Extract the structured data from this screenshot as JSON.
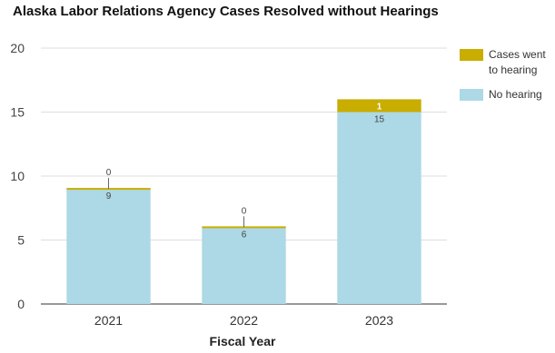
{
  "chart_data": {
    "type": "bar",
    "stacked": true,
    "title": "Alaska Labor Relations Agency Cases Resolved without Hearings",
    "xlabel": "Fiscal Year",
    "ylabel": "",
    "categories": [
      "2021",
      "2022",
      "2023"
    ],
    "series": [
      {
        "name": "No hearing",
        "values": [
          9,
          6,
          15
        ],
        "color": "#add8e6"
      },
      {
        "name": "Cases went to hearing",
        "values": [
          0,
          0,
          1
        ],
        "color": "#c9ad00"
      }
    ],
    "ylim": [
      0,
      20
    ],
    "yticks": [
      0,
      5,
      10,
      15,
      20
    ],
    "grid": true,
    "legend_position": "right"
  }
}
